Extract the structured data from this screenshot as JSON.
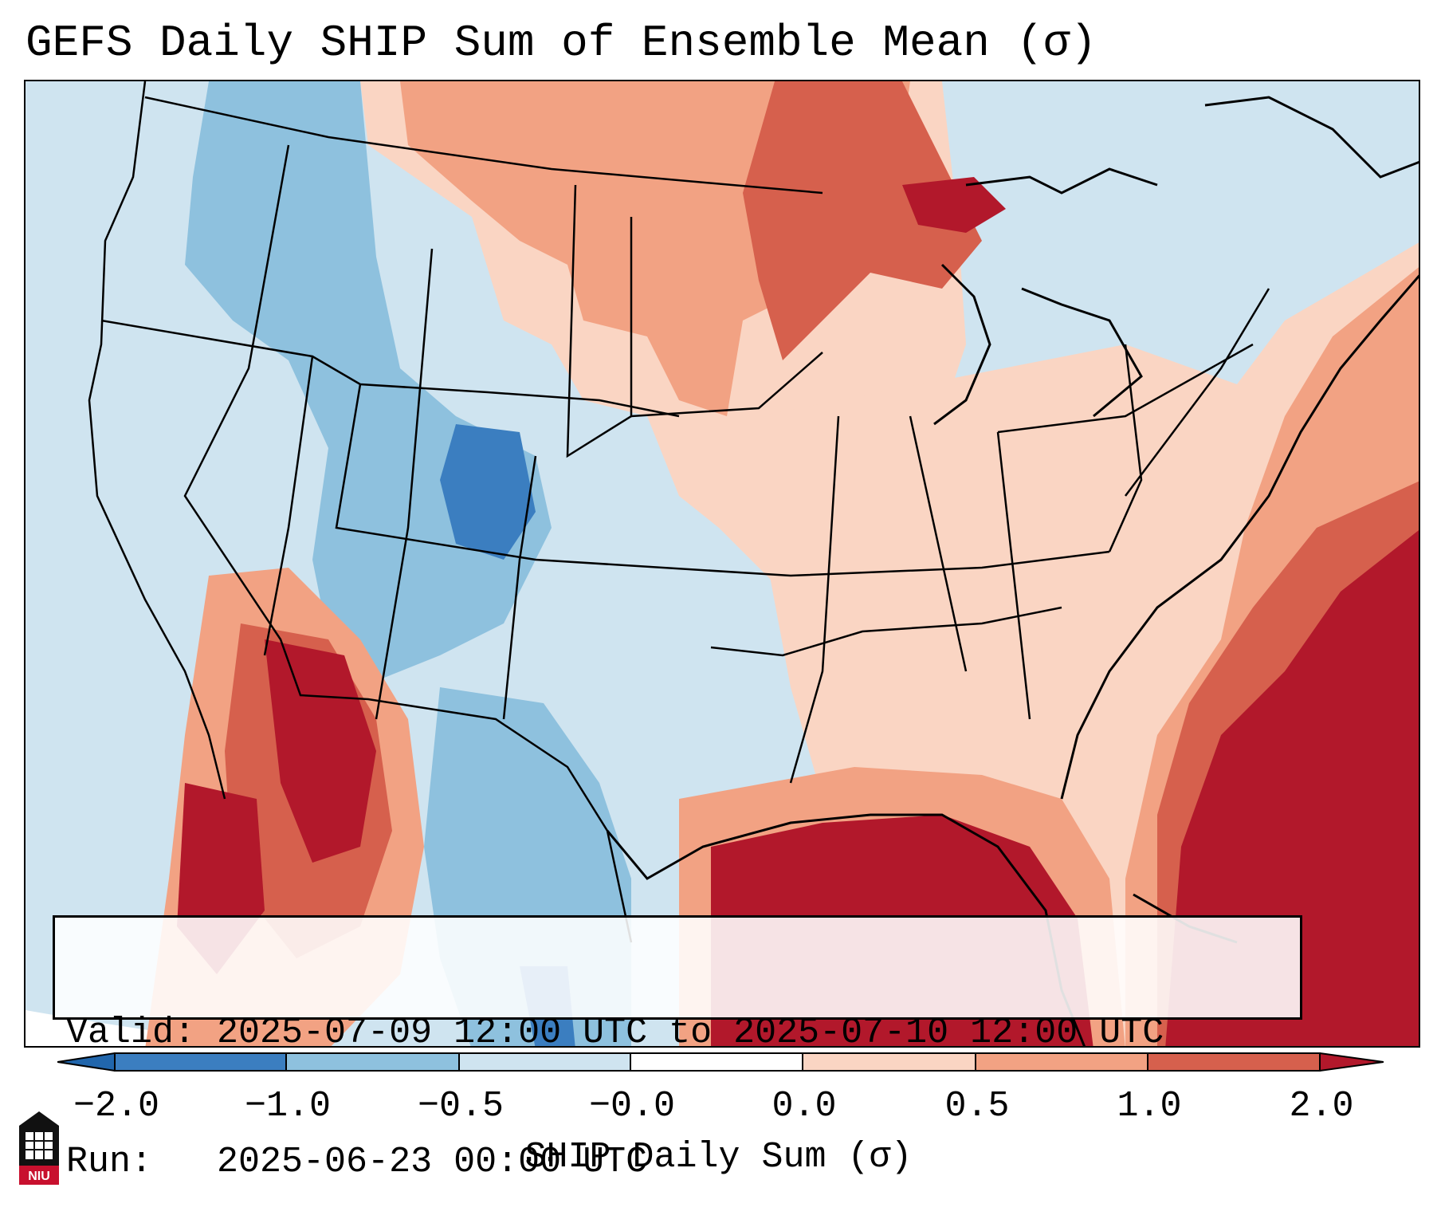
{
  "title": "GEFS Daily SHIP Sum of Ensemble Mean (σ)",
  "info": {
    "valid_line": "Valid: 2025-07-09 12:00 UTC to 2025-07-10 12:00 UTC",
    "run_line": "Run:   2025-06-23 00:00 UTC"
  },
  "colorbar": {
    "label": "SHIP Daily Sum (σ)",
    "ticks": [
      "−2.0",
      "−1.0",
      "−0.5",
      "−0.0",
      "0.0",
      "0.5",
      "1.0",
      "2.0"
    ],
    "colors": [
      "#3b7ec0",
      "#8ec1de",
      "#cfe4f0",
      "#fad5c3",
      "#f2a283",
      "#d6604d",
      "#b2182b"
    ],
    "extend": "both"
  },
  "logo": {
    "text": "NIU",
    "colors": {
      "body": "#111111",
      "accent": "#c8102e"
    }
  },
  "map": {
    "region": "Continental United States",
    "colors": {
      "strong_negative": "#3b7ec0",
      "negative": "#8ec1de",
      "weak_negative": "#cfe4f0",
      "weak_positive": "#fad5c3",
      "positive": "#f2a283",
      "strong_positive_low": "#d6604d",
      "strong_positive": "#b2182b",
      "land_outline": "#000000"
    }
  }
}
